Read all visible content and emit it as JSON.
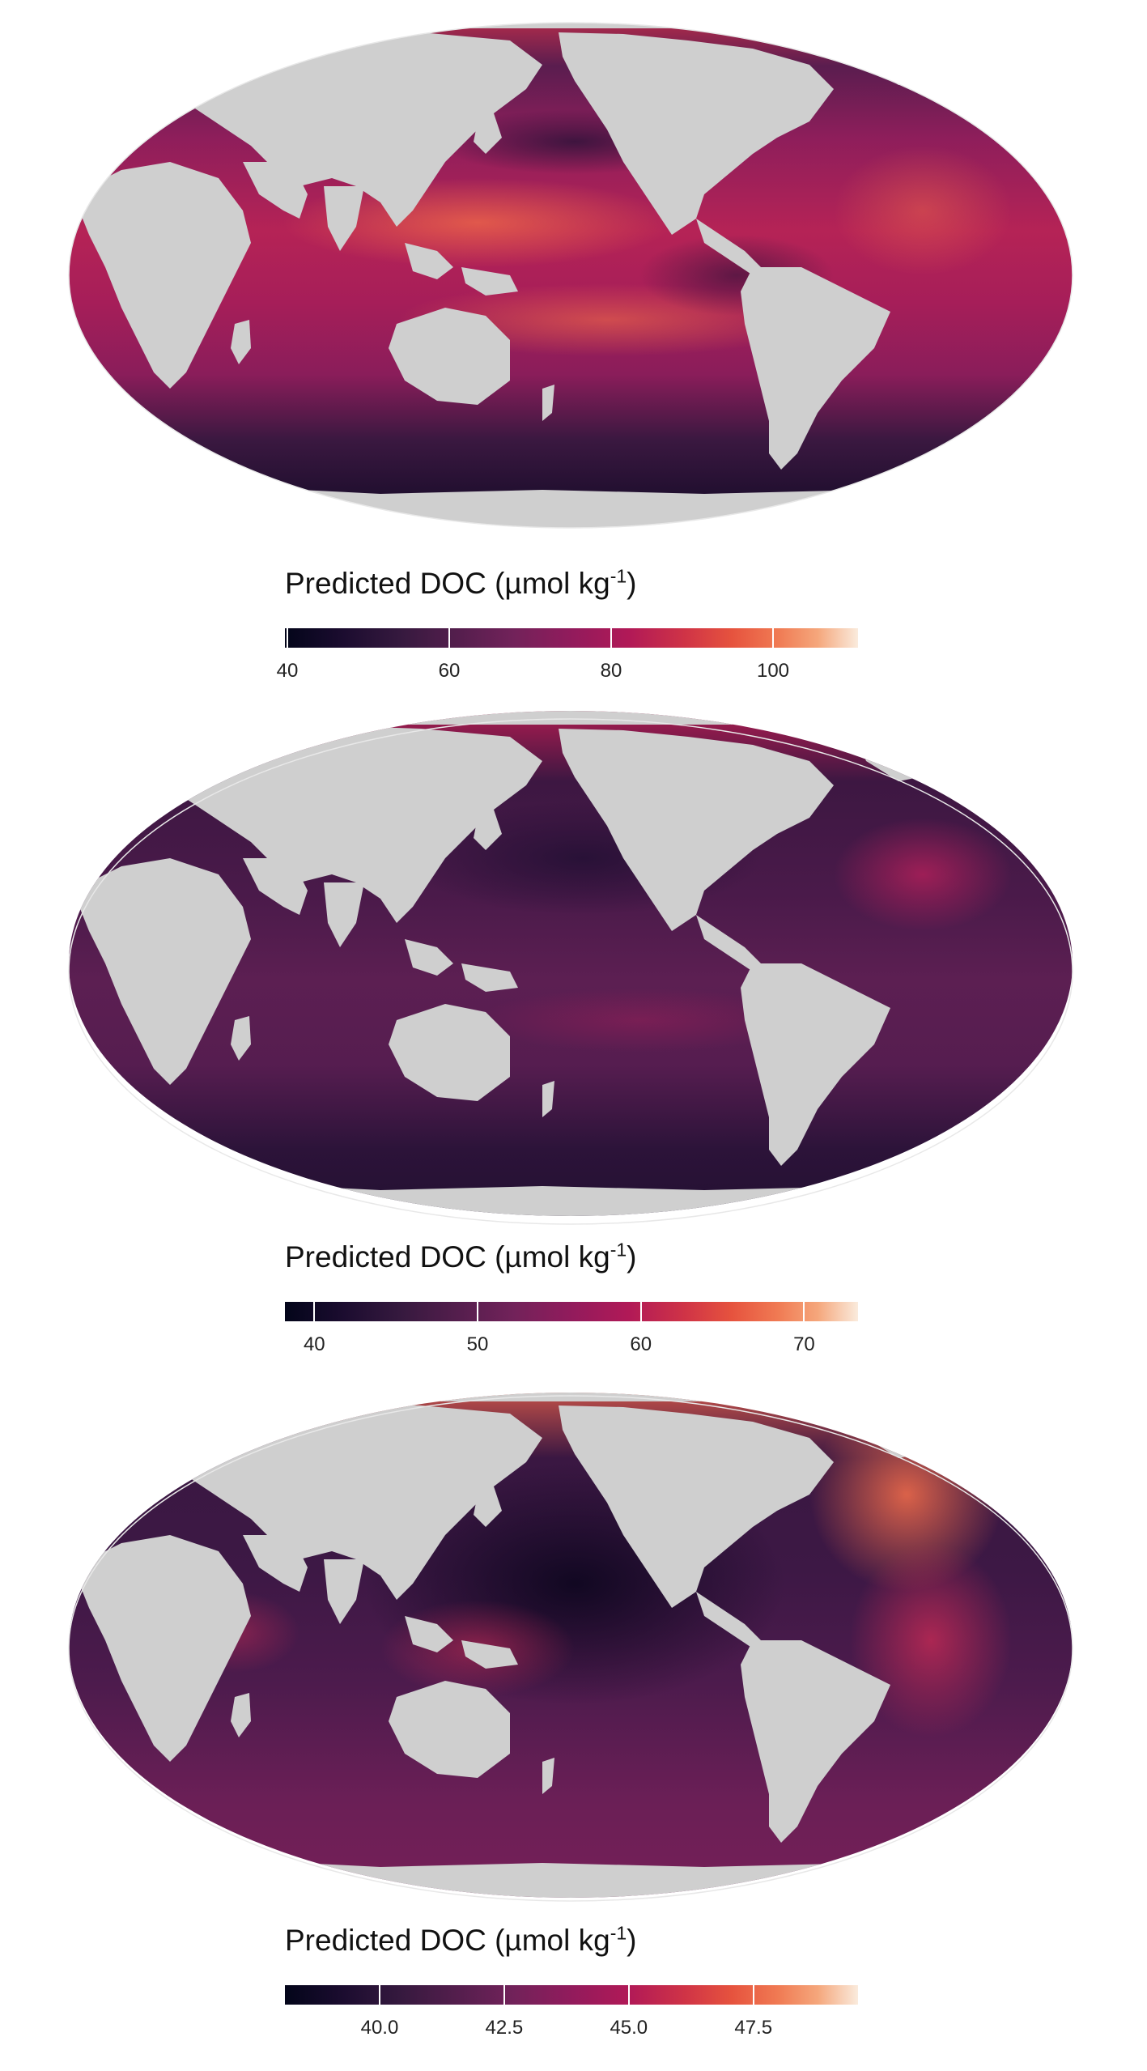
{
  "maps": [
    {
      "legend": {
        "title": "Predicted DOC (µmol kg",
        "superscript": "-1",
        "title_end": ")"
      },
      "ticks": [
        {
          "value": 40,
          "label": "40"
        },
        {
          "value": 60,
          "label": "60"
        },
        {
          "value": 80,
          "label": "80"
        },
        {
          "value": 100,
          "label": "100"
        }
      ],
      "scale": {
        "min": 39.7,
        "max": 110.5
      },
      "palette": "inferno-rocket",
      "pattern": "high-low-latitude"
    },
    {
      "legend": {
        "title": "Predicted DOC (µmol kg",
        "superscript": "-1",
        "title_end": ")"
      },
      "ticks": [
        {
          "value": 40,
          "label": "40"
        },
        {
          "value": 50,
          "label": "50"
        },
        {
          "value": 60,
          "label": "60"
        },
        {
          "value": 70,
          "label": "70"
        }
      ],
      "scale": {
        "min": 38.2,
        "max": 73.3
      },
      "palette": "inferno-rocket",
      "pattern": "mid-values"
    },
    {
      "legend": {
        "title": "Predicted DOC (µmol kg",
        "superscript": "-1",
        "title_end": ")"
      },
      "ticks": [
        {
          "value": 40.0,
          "label": "40.0"
        },
        {
          "value": 42.5,
          "label": "42.5"
        },
        {
          "value": 45.0,
          "label": "45.0"
        },
        {
          "value": 47.5,
          "label": "47.5"
        }
      ],
      "scale": {
        "min": 38.1,
        "max": 49.6
      },
      "palette": "inferno-rocket",
      "pattern": "atlantic-high"
    }
  ]
}
